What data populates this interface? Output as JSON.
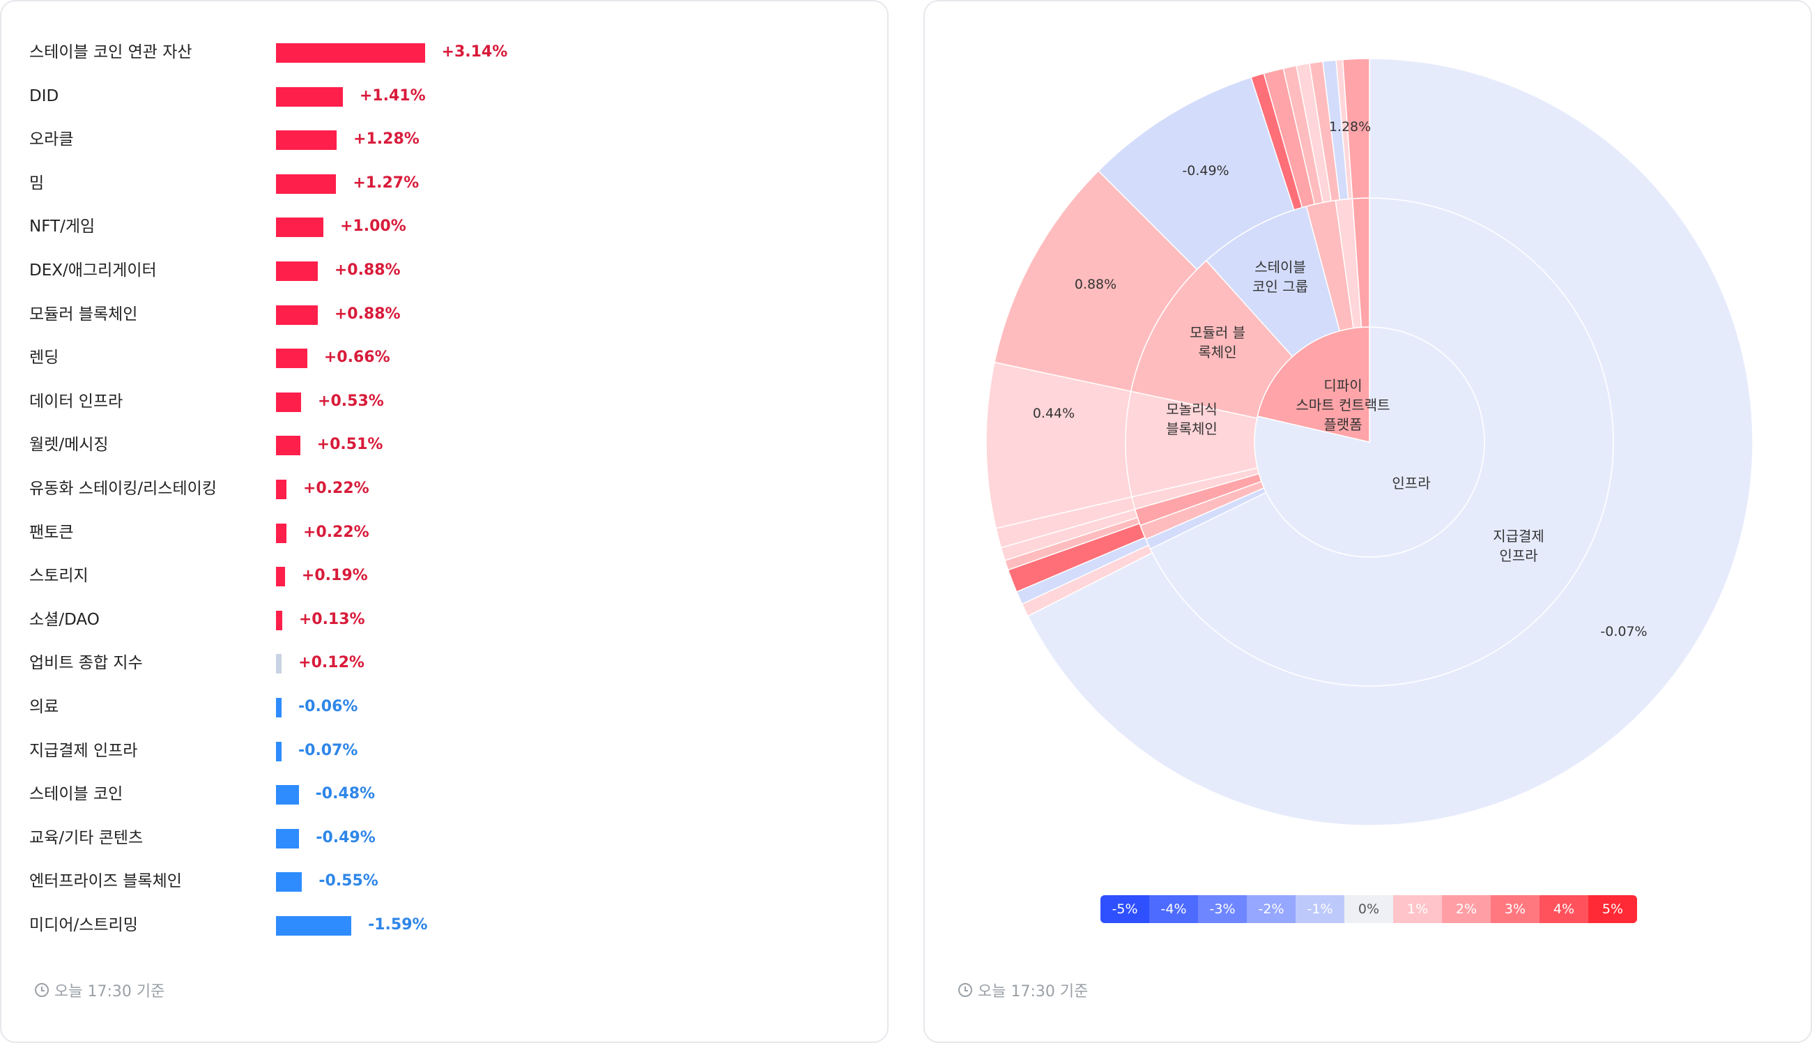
{
  "left_panel": {
    "footer_time": "오늘 17:30 기준"
  },
  "right_panel": {
    "footer_time": "오늘 17:30 기준",
    "legend": [
      "-5%",
      "-4%",
      "-3%",
      "-2%",
      "-1%",
      "0%",
      "1%",
      "2%",
      "3%",
      "4%",
      "5%"
    ],
    "legend_colors": [
      "#2f50ff",
      "#4d6bff",
      "#6e86ff",
      "#96a7ff",
      "#bec9fb",
      "#eef0f5",
      "#ffc4c9",
      "#ff9ea5",
      "#ff7880",
      "#ff525c",
      "#ff2a35"
    ]
  },
  "chart_data": [
    {
      "type": "bar",
      "orientation": "horizontal",
      "categories": [
        "스테이블 코인 연관 자산",
        "DID",
        "오라클",
        "밈",
        "NFT/게임",
        "DEX/애그리게이터",
        "모듈러 블록체인",
        "렌딩",
        "데이터 인프라",
        "월렛/메시징",
        "유동화 스테이킹/리스테이킹",
        "팬토큰",
        "스토리지",
        "소셜/DAO",
        "업비트 종합 지수",
        "의료",
        "지급결제 인프라",
        "스테이블 코인",
        "교육/기타 콘텐츠",
        "엔터프라이즈 블록체인",
        "미디어/스트리밍"
      ],
      "values": [
        3.14,
        1.41,
        1.28,
        1.27,
        1.0,
        0.88,
        0.88,
        0.66,
        0.53,
        0.51,
        0.22,
        0.22,
        0.19,
        0.13,
        0.12,
        -0.06,
        -0.07,
        -0.48,
        -0.49,
        -0.55,
        -1.59
      ],
      "value_labels": [
        "+3.14%",
        "+1.41%",
        "+1.28%",
        "+1.27%",
        "+1.00%",
        "+0.88%",
        "+0.88%",
        "+0.66%",
        "+0.53%",
        "+0.51%",
        "+0.22%",
        "+0.22%",
        "+0.19%",
        "+0.13%",
        "+0.12%",
        "-0.06%",
        "-0.07%",
        "-0.48%",
        "-0.49%",
        "-0.55%",
        "-1.59%"
      ],
      "colors": {
        "positive": "#ff1f4b",
        "negative": "#2e8cff",
        "index": "#c9d3e3",
        "positive_text": "#d81b3a",
        "negative_text": "#2e86e8"
      }
    },
    {
      "type": "sunburst",
      "center_label": "인프라",
      "inner": [
        {
          "name": "인프라",
          "value": -0.07
        },
        {
          "name": "디파이\n스마트 컨트랙트\n플랫폼",
          "value": 1.28
        }
      ],
      "middle": [
        {
          "name": "지급결제\n인프라",
          "value": -0.07
        },
        {
          "name": "모놀리식\n블록체인",
          "value": 0.44
        },
        {
          "name": "모듈러 블\n록체인",
          "value": 0.88
        },
        {
          "name": "스테이블\n코인 그룹",
          "value": -0.49
        }
      ],
      "outer_labels": [
        "-0.07%",
        "0.44%",
        "0.88%",
        "-0.49%",
        "1.28%"
      ]
    }
  ]
}
